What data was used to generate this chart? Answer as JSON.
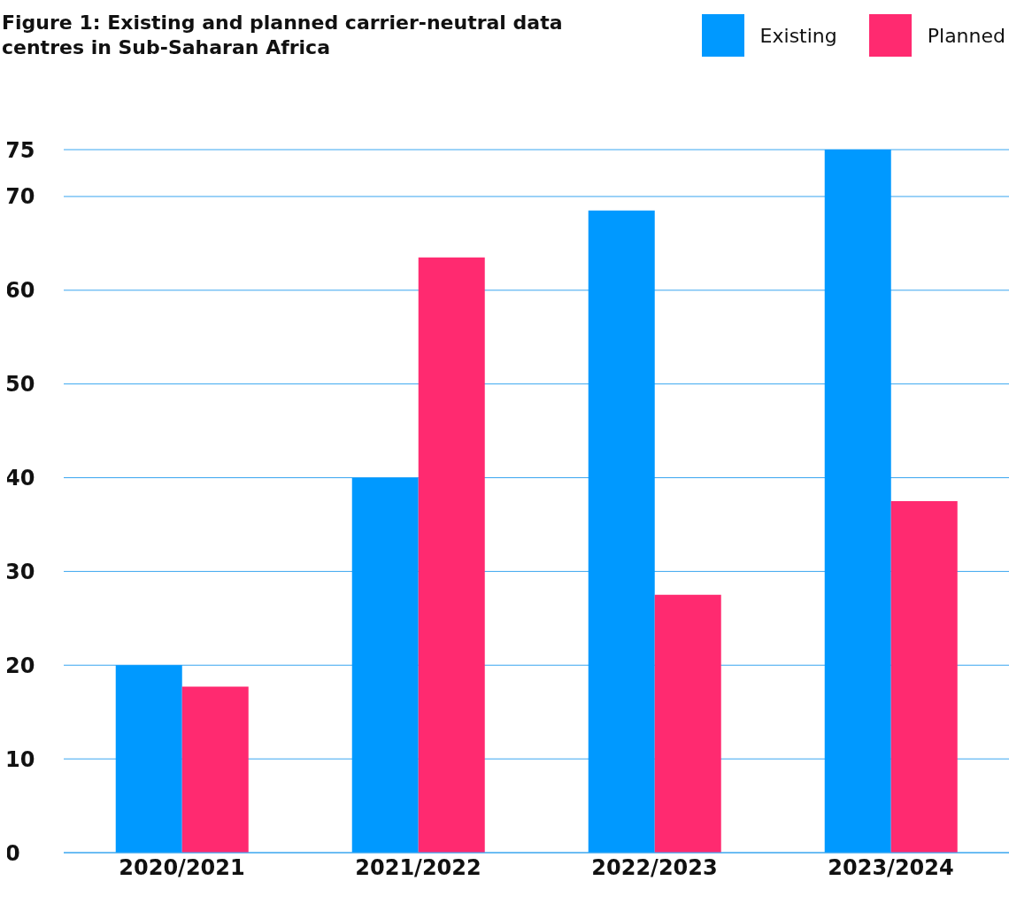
{
  "chart_data": {
    "type": "bar",
    "title": "Figure 1: Existing and planned carrier-neutral data centres in Sub-Saharan Africa",
    "categories": [
      "2020/2021",
      "2021/2022",
      "2022/2023",
      "2023/2024"
    ],
    "series": [
      {
        "name": "Existing",
        "color": "#0099ff",
        "values": [
          20,
          40,
          68.5,
          75
        ]
      },
      {
        "name": "Planned",
        "color": "#ff2a70",
        "values": [
          17.7,
          63.5,
          27.5,
          37.5
        ]
      }
    ],
    "ylim": [
      0,
      75
    ],
    "yticks": [
      0,
      10,
      20,
      30,
      40,
      50,
      60,
      70,
      75
    ],
    "grid": "y",
    "legend": "top right"
  }
}
